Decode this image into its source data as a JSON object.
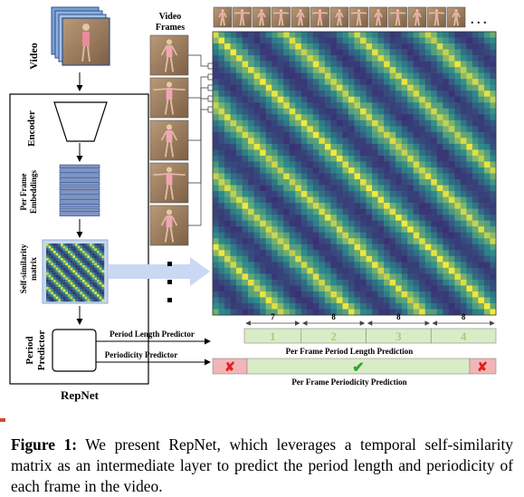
{
  "labels": {
    "video": "Video",
    "video_frames": "Video Frames",
    "repnet": "RepNet",
    "encoder": "Encoder",
    "per_frame_embeddings": "Per Frame Embeddings",
    "self_similarity_matrix": "Self-similarity matrix",
    "period_predictor": "Period Predictor",
    "period_length_predictor": "Period Length Predictor",
    "periodicity_predictor": "Periodicity Predictor",
    "per_frame_period_length_prediction": "Per Frame Period Length Prediction",
    "per_frame_periodicity_prediction": "Per Frame Periodicity Prediction",
    "ellipsis": ". . ."
  },
  "period_segments": [
    {
      "count": "7",
      "label": "1"
    },
    {
      "count": "8",
      "label": "2"
    },
    {
      "count": "8",
      "label": "3"
    },
    {
      "count": "8",
      "label": "4"
    }
  ],
  "periodicity": {
    "left": "✘",
    "middle": "✔",
    "right": "✘"
  },
  "caption": {
    "prefix": "Figure 1:",
    "text": " We present RepNet, which leverages a temporal self-similarity matrix as an intermediate layer to predict the period length and periodicity of each frame in the video."
  },
  "colors": {
    "matrix_low": "#3b2a73",
    "matrix_mid": "#2c8c8c",
    "matrix_high": "#f4ea3c",
    "segment_fill": "#d9ecc6",
    "segment_text": "#9fd07f",
    "non_periodic_fill": "#f2b5b5",
    "cross": "#e02020",
    "check": "#2fa33a",
    "embed_fill": "#7b97c9",
    "arrow_blue": "#c9d8f3"
  }
}
